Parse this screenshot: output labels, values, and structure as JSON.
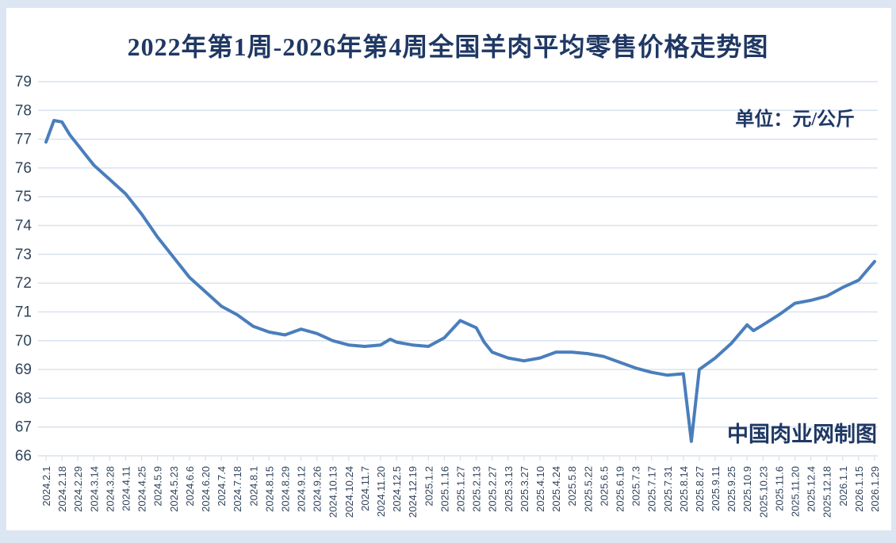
{
  "page": {
    "title": "2022年第1周-2026年第4周全国羊肉平均零售价格走势图",
    "unit_label": "单位：元/公斤",
    "watermark": "中国肉业网制图",
    "colors": {
      "frame": "#dce6f2",
      "background": "#ffffff",
      "gridline": "#d9e2ee",
      "line": "#4a7ebb",
      "title_text": "#1f3864",
      "axis_text": "#31445c"
    }
  },
  "chart_data": {
    "type": "line",
    "title": "2022年第1周-2026年第4周全国羊肉平均零售价格走势图",
    "unit": "元/公斤",
    "xlabel": "",
    "ylabel": "",
    "ylim": [
      66,
      79
    ],
    "y_ticks": [
      79,
      78,
      77,
      76,
      75,
      74,
      73,
      72,
      71,
      70,
      69,
      68,
      67,
      66
    ],
    "grid": "horizontal",
    "legend_position": "none",
    "categories": [
      "2024.2.1",
      "2024.2.18",
      "2024.2.29",
      "2024.3.14",
      "2024.3.28",
      "2024.4.11",
      "2024.4.25",
      "2024.5.9",
      "2024.5.23",
      "2024.6.6",
      "2024.6.20",
      "2024.7.4",
      "2024.7.18",
      "2024.8.1",
      "2024.8.15",
      "2024.8.29",
      "2024.9.12",
      "2024.9.26",
      "2024.10.13",
      "2024.10.24",
      "2024.11.7",
      "2024.11.20",
      "2024.12.5",
      "2024.12.19",
      "2025.1.2",
      "2025.1.16",
      "2025.1.27",
      "2025.2.13",
      "2025.2.27",
      "2025.3.13",
      "2025.3.27",
      "2025.4.10",
      "2025.4.24",
      "2025.5.8",
      "2025.5.22",
      "2025.6.5",
      "2025.6.19",
      "2025.7.3",
      "2025.7.17",
      "2025.7.31",
      "2025.8.14",
      "2025.8.27",
      "2025.9.11",
      "2025.9.25",
      "2025.10.9",
      "2025.10.23",
      "2025.11.6",
      "2025.11.20",
      "2025.12.4",
      "2025.12.18",
      "2026.1.1",
      "2026.1.15",
      "2026.1.29"
    ],
    "series": [
      {
        "points": [
          [
            0,
            76.9
          ],
          [
            0.5,
            77.65
          ],
          [
            1,
            77.6
          ],
          [
            1.5,
            77.15
          ],
          [
            2,
            76.8
          ],
          [
            2.5,
            76.45
          ],
          [
            3,
            76.1
          ],
          [
            4,
            75.6
          ],
          [
            5,
            75.1
          ],
          [
            6,
            74.4
          ],
          [
            7,
            73.6
          ],
          [
            8,
            72.9
          ],
          [
            9,
            72.2
          ],
          [
            10,
            71.7
          ],
          [
            11,
            71.2
          ],
          [
            12,
            70.9
          ],
          [
            13,
            70.5
          ],
          [
            14,
            70.3
          ],
          [
            15,
            70.2
          ],
          [
            16,
            70.4
          ],
          [
            17,
            70.25
          ],
          [
            18,
            70.0
          ],
          [
            19,
            69.85
          ],
          [
            20,
            69.8
          ],
          [
            21,
            69.85
          ],
          [
            21.6,
            70.05
          ],
          [
            22,
            69.95
          ],
          [
            23,
            69.85
          ],
          [
            24,
            69.8
          ],
          [
            25,
            70.1
          ],
          [
            26,
            70.7
          ],
          [
            27,
            70.45
          ],
          [
            27.5,
            69.95
          ],
          [
            28,
            69.6
          ],
          [
            29,
            69.4
          ],
          [
            30,
            69.3
          ],
          [
            31,
            69.4
          ],
          [
            32,
            69.6
          ],
          [
            33,
            69.6
          ],
          [
            34,
            69.55
          ],
          [
            35,
            69.45
          ],
          [
            36,
            69.25
          ],
          [
            37,
            69.05
          ],
          [
            38,
            68.9
          ],
          [
            39,
            68.8
          ],
          [
            40,
            68.85
          ],
          [
            40.5,
            66.5
          ],
          [
            41,
            69.0
          ],
          [
            42,
            69.4
          ],
          [
            43,
            69.9
          ],
          [
            44,
            70.55
          ],
          [
            44.4,
            70.35
          ],
          [
            45,
            70.55
          ],
          [
            46,
            70.9
          ],
          [
            47,
            71.3
          ],
          [
            48,
            71.4
          ],
          [
            49,
            71.55
          ],
          [
            50,
            71.85
          ],
          [
            51,
            72.1
          ],
          [
            52,
            72.75
          ]
        ]
      }
    ]
  }
}
